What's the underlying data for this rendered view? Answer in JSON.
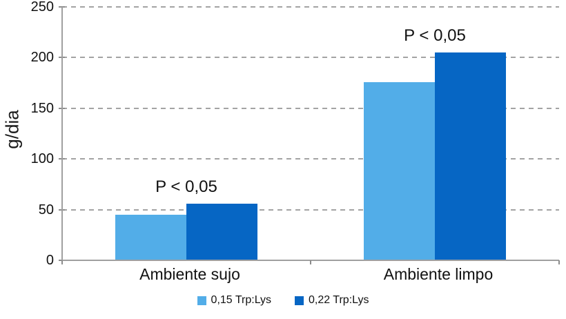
{
  "chart_data": {
    "type": "bar",
    "title": "",
    "ylabel": "g/dia",
    "xlabel": "",
    "categories": [
      "Ambiente sujo",
      "Ambiente limpo"
    ],
    "series": [
      {
        "name": "0,15 Trp:Lys",
        "color": "#52ADE8",
        "values": [
          45,
          176
        ]
      },
      {
        "name": "0,22 Trp:Lys",
        "color": "#0666C4",
        "values": [
          56,
          205
        ]
      }
    ],
    "annotations": [
      {
        "category_index": 0,
        "text": "P < 0,05"
      },
      {
        "category_index": 1,
        "text": "P < 0,05"
      }
    ],
    "ylim": [
      0,
      250
    ],
    "yticks": [
      0,
      50,
      100,
      150,
      200,
      250
    ],
    "grid": "horizontal-dashed",
    "legend_position": "bottom-center"
  },
  "colors": {
    "background": "#ffffff",
    "axis": "#a0a0a0",
    "grid": "#a3a3a3",
    "text": "#111111",
    "series_light": "#52ADE8",
    "series_dark": "#0666C4"
  }
}
